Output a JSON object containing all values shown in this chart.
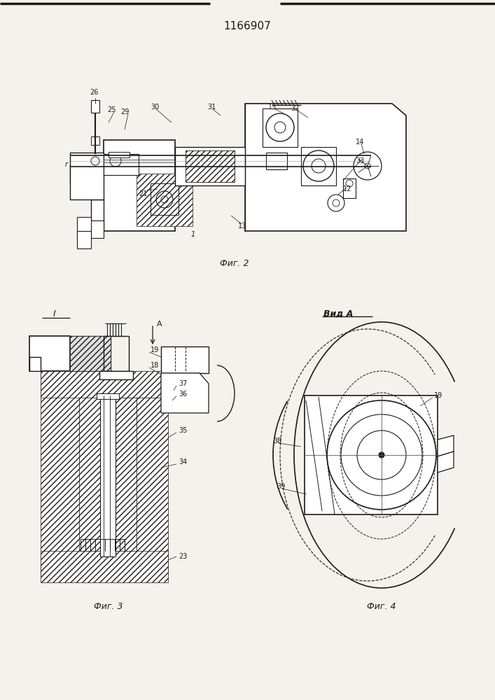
{
  "title": "1166907",
  "bg_color": "#f5f2ed",
  "line_color": "#1a1a1a",
  "fig2_caption": "Фиг. 2",
  "fig3_caption": "Фиг. 3",
  "fig4_caption": "Фиг. 4",
  "vid_a_label": "Вид A"
}
